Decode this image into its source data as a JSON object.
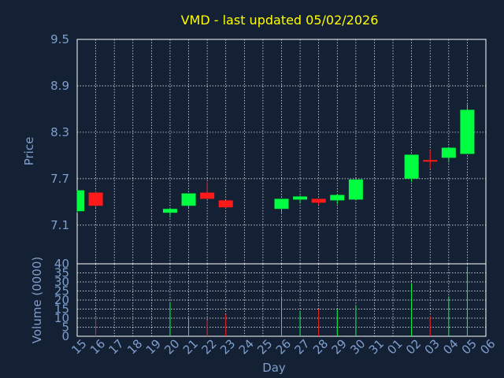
{
  "colors": {
    "background": "#142033",
    "title": "#ffff00",
    "axis_text": "#7f9fcf",
    "grid": "#ffffff",
    "up": "#00ff40",
    "down": "#ff1a1a"
  },
  "chart_data": [
    {
      "type": "candlestick",
      "title": "VMD - last updated 05/02/2026",
      "ylabel": "Price",
      "ylim": [
        6.6,
        9.5
      ],
      "yticks": [
        "9.5",
        "8.9",
        "8.3",
        "7.7",
        "7.1"
      ],
      "grid": true,
      "x": [
        "15",
        "16",
        "17",
        "18",
        "19",
        "20",
        "21",
        "22",
        "23",
        "24",
        "25",
        "26",
        "27",
        "28",
        "29",
        "30",
        "31",
        "01",
        "02",
        "03",
        "04",
        "05",
        "06"
      ],
      "candles": [
        {
          "x": "15",
          "open": 7.28,
          "high": 7.55,
          "low": 7.26,
          "close": 7.55
        },
        {
          "x": "16",
          "open": 7.52,
          "high": 7.54,
          "low": 7.33,
          "close": 7.35
        },
        {
          "x": "20",
          "open": 7.26,
          "high": 7.32,
          "low": 7.2,
          "close": 7.31
        },
        {
          "x": "21",
          "open": 7.35,
          "high": 7.51,
          "low": 7.33,
          "close": 7.51
        },
        {
          "x": "22",
          "open": 7.52,
          "high": 7.66,
          "low": 7.44,
          "close": 7.44
        },
        {
          "x": "23",
          "open": 7.42,
          "high": 7.42,
          "low": 7.32,
          "close": 7.33
        },
        {
          "x": "26",
          "open": 7.31,
          "high": 7.44,
          "low": 7.26,
          "close": 7.44
        },
        {
          "x": "27",
          "open": 7.43,
          "high": 7.48,
          "low": 7.38,
          "close": 7.47
        },
        {
          "x": "28",
          "open": 7.44,
          "high": 7.44,
          "low": 7.36,
          "close": 7.39
        },
        {
          "x": "29",
          "open": 7.42,
          "high": 7.5,
          "low": 7.37,
          "close": 7.49
        },
        {
          "x": "30",
          "open": 7.43,
          "high": 7.69,
          "low": 7.43,
          "close": 7.69
        },
        {
          "x": "02",
          "open": 7.7,
          "high": 8.01,
          "low": 7.66,
          "close": 8.01
        },
        {
          "x": "03",
          "open": 7.93,
          "high": 8.07,
          "low": 7.83,
          "close": 7.93
        },
        {
          "x": "04",
          "open": 7.97,
          "high": 8.1,
          "low": 7.91,
          "close": 8.1
        },
        {
          "x": "05",
          "open": 8.02,
          "high": 8.66,
          "low": 8.02,
          "close": 8.59
        }
      ]
    },
    {
      "type": "bar",
      "ylabel": "Volume (0000)",
      "xlabel": "Day",
      "ylim": [
        0,
        40
      ],
      "yticks": [
        "40",
        "35",
        "30",
        "25",
        "20",
        "15",
        "10",
        "5",
        "0"
      ],
      "grid": true,
      "categories": [
        "16",
        "20",
        "21",
        "22",
        "23",
        "26",
        "27",
        "28",
        "29",
        "30",
        "02",
        "03",
        "04",
        "05"
      ],
      "values": [
        10,
        19,
        10,
        9,
        12,
        22,
        14,
        15,
        15,
        17,
        29,
        11,
        22,
        38
      ],
      "colors": [
        "down",
        "up",
        "up",
        "down",
        "down",
        "up",
        "up",
        "down",
        "up",
        "up",
        "up",
        "down",
        "up",
        "up"
      ]
    }
  ]
}
